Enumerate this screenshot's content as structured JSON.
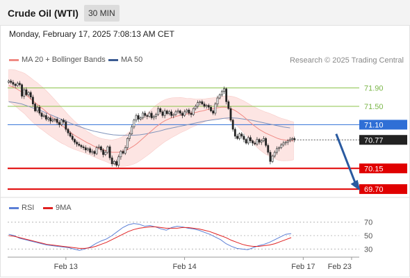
{
  "header": {
    "instrument": "Crude Oil (WTI)",
    "timeframe": "30 MIN",
    "datetime": "Monday, February 17, 2025 7:08:13 AM CET",
    "copyright": "Research © 2025 Trading Central"
  },
  "legend_main": [
    {
      "label": "MA 20 + Bollinger Bands",
      "color": "#f08a84"
    },
    {
      "label": "MA 50",
      "color": "#3b5b92"
    }
  ],
  "legend_rsi": [
    {
      "label": "RSI",
      "color": "#5b7fd6"
    },
    {
      "label": "9MA",
      "color": "#e02020"
    }
  ],
  "chart_data": [
    {
      "type": "candlestick",
      "title": "Crude Oil (WTI)",
      "timeframe": "30 MIN",
      "ylim": [
        69.55,
        72.3
      ],
      "x_tick_labels": [
        {
          "label": "Feb 13",
          "index": 26
        },
        {
          "label": "Feb 14",
          "index": 80
        },
        {
          "label": "Feb 17",
          "index": 134
        },
        {
          "label": "Feb 23",
          "index": 156
        }
      ],
      "levels": [
        {
          "value": 71.9,
          "label": "71.90",
          "color": "#8bc34a",
          "style": "thin"
        },
        {
          "value": 71.5,
          "label": "71.50",
          "color": "#8bc34a",
          "style": "thin"
        },
        {
          "value": 71.1,
          "label": "71.10",
          "color": "#2f6fd6",
          "style": "thin",
          "badge": "blue"
        },
        {
          "value": 70.15,
          "label": "70.15",
          "color": "#e00000",
          "style": "thick",
          "badge": "red"
        },
        {
          "value": 69.7,
          "label": "69.70",
          "color": "#e00000",
          "style": "thick",
          "badge": "red"
        }
      ],
      "last_price": {
        "value": 70.77,
        "label": "70.77"
      },
      "forecast_arrow": {
        "from_index": 149,
        "from_value": 70.9,
        "to_index": 160,
        "to_value": 69.75
      },
      "candles_close": [
        72.05,
        72.02,
        71.98,
        71.95,
        72.0,
        71.97,
        71.72,
        71.86,
        71.75,
        71.8,
        71.7,
        71.55,
        71.4,
        71.48,
        71.35,
        71.28,
        71.3,
        71.22,
        71.25,
        71.18,
        71.2,
        71.22,
        71.15,
        71.1,
        71.2,
        71.16,
        71.0,
        70.92,
        70.85,
        70.78,
        70.72,
        70.68,
        70.65,
        70.62,
        70.6,
        70.55,
        70.58,
        70.5,
        70.52,
        70.47,
        70.6,
        70.62,
        70.55,
        70.45,
        70.5,
        70.62,
        70.38,
        70.25,
        70.3,
        70.22,
        70.4,
        70.52,
        70.48,
        70.6,
        70.8,
        70.9,
        71.05,
        71.2,
        71.3,
        71.22,
        71.25,
        71.35,
        71.3,
        71.28,
        71.35,
        71.25,
        71.28,
        71.32,
        71.45,
        71.38,
        71.3,
        71.4,
        71.34,
        71.38,
        71.3,
        71.32,
        71.38,
        71.4,
        71.35,
        71.3,
        71.38,
        71.42,
        71.35,
        71.32,
        71.45,
        71.5,
        71.58,
        71.6,
        71.55,
        71.5,
        71.52,
        71.48,
        71.4,
        71.35,
        71.55,
        71.68,
        71.75,
        71.82,
        71.88,
        71.6,
        71.45,
        71.2,
        71.0,
        70.85,
        70.8,
        70.9,
        70.85,
        70.78,
        70.7,
        70.82,
        70.75,
        70.7,
        70.68,
        70.78,
        70.72,
        70.75,
        70.8,
        70.65,
        70.5,
        70.3,
        70.42,
        70.5,
        70.58,
        70.6,
        70.66,
        70.7,
        70.72,
        70.75,
        70.78,
        70.8,
        70.77
      ],
      "ma20": [
        71.95,
        71.93,
        71.9,
        71.86,
        71.82,
        71.78,
        71.72,
        71.66,
        71.6,
        71.55,
        71.49,
        71.44,
        71.38,
        71.32,
        71.26,
        71.2,
        71.14,
        71.08,
        71.03,
        70.97,
        70.92,
        70.87,
        70.83,
        70.79,
        70.75,
        70.71,
        70.68,
        70.64,
        70.61,
        70.58,
        70.56,
        70.54,
        70.52,
        70.5,
        70.5,
        70.5,
        70.51,
        70.53,
        70.56,
        70.6,
        70.64,
        70.69,
        70.75,
        70.81,
        70.87,
        70.93,
        70.99,
        71.05,
        71.1,
        71.15,
        71.19,
        71.22,
        71.25,
        71.27,
        71.29,
        71.31,
        71.32,
        71.33,
        71.35,
        71.36,
        71.37,
        71.39,
        71.4,
        71.42,
        71.44,
        71.45,
        71.46,
        71.47,
        71.48,
        71.48,
        71.47,
        71.45,
        71.42,
        71.38,
        71.33,
        71.28,
        71.22,
        71.16,
        71.1,
        71.05,
        71.0,
        70.96,
        70.92,
        70.89,
        70.86,
        70.83,
        70.8,
        70.78,
        70.77,
        70.76,
        70.75,
        70.75
      ],
      "ma50": [
        71.6,
        71.58,
        71.55,
        71.5,
        71.45,
        71.4,
        71.34,
        71.28,
        71.22,
        71.16,
        71.1,
        71.05,
        71.0,
        70.96,
        70.93,
        70.9,
        70.88,
        70.87,
        70.87,
        70.87,
        70.88,
        70.9,
        70.93,
        70.96,
        71.0,
        71.03,
        71.06,
        71.09,
        71.12,
        71.15,
        71.18,
        71.2,
        71.22,
        71.24,
        71.25,
        71.24,
        71.22,
        71.2,
        71.17,
        71.14,
        71.11,
        71.08,
        71.05,
        71.03
      ],
      "rsi_panel": {
        "ylim": [
          20,
          80
        ],
        "ticks": [
          70,
          50,
          30
        ],
        "rsi": [
          52,
          50,
          46,
          44,
          42,
          40,
          38,
          36,
          35,
          34,
          33,
          32,
          30,
          28,
          30,
          33,
          38,
          42,
          45,
          50,
          56,
          62,
          66,
          68,
          67,
          64,
          65,
          63,
          60,
          58,
          62,
          64,
          63,
          61,
          60,
          58,
          55,
          52,
          48,
          44,
          38,
          34,
          31,
          30,
          29,
          32,
          35,
          37,
          40,
          44,
          48,
          52,
          53
        ],
        "rsi_ma": [
          50,
          49,
          47,
          45,
          43,
          41,
          39,
          37,
          36,
          35,
          34,
          33,
          32,
          31,
          31,
          32,
          34,
          37,
          40,
          44,
          48,
          52,
          56,
          59,
          61,
          62,
          63,
          63,
          62,
          61,
          61,
          61,
          62,
          62,
          61,
          60,
          58,
          56,
          53,
          50,
          47,
          43,
          40,
          37,
          35,
          34,
          34,
          35,
          36,
          38,
          41,
          44,
          47
        ]
      }
    }
  ]
}
